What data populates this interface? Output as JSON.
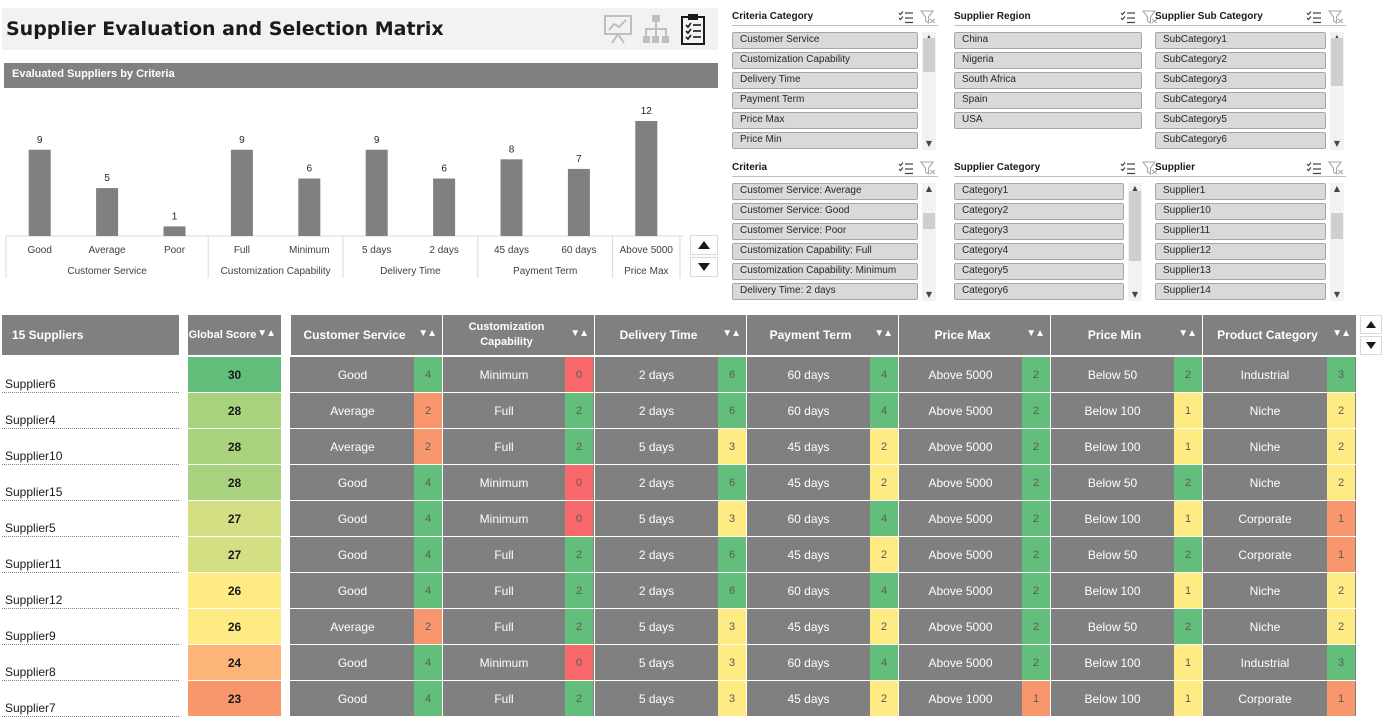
{
  "title": "Supplier Evaluation and Selection Matrix",
  "title_icons": [
    "chart-presentation-icon",
    "org-hierarchy-icon",
    "clipboard-checklist-icon"
  ],
  "chart": {
    "header": "Evaluated Suppliers by Criteria"
  },
  "chart_data": {
    "type": "bar",
    "title": "Evaluated Suppliers by Criteria",
    "groups": [
      {
        "label": "Customer Service",
        "categories": [
          "Good",
          "Average",
          "Poor"
        ],
        "values": [
          9,
          5,
          1
        ]
      },
      {
        "label": "Customization Capability",
        "categories": [
          "Full",
          "Minimum"
        ],
        "values": [
          9,
          6
        ]
      },
      {
        "label": "Delivery Time",
        "categories": [
          "5 days",
          "2 days"
        ],
        "values": [
          9,
          6
        ]
      },
      {
        "label": "Payment Term",
        "categories": [
          "45 days",
          "60 days"
        ],
        "values": [
          8,
          7
        ]
      },
      {
        "label": "Price Max",
        "categories": [
          "Above 5000"
        ],
        "values": [
          12
        ]
      }
    ],
    "categories": [
      "Good",
      "Average",
      "Poor",
      "Full",
      "Minimum",
      "5 days",
      "2 days",
      "45 days",
      "60 days",
      "Above 5000"
    ],
    "values": [
      9,
      5,
      1,
      9,
      6,
      9,
      6,
      8,
      7,
      12
    ],
    "ylim": [
      0,
      12
    ],
    "grid": false,
    "bar_color": "#808080"
  },
  "slicers": [
    {
      "title": "Criteria Category",
      "items": [
        "Customer Service",
        "Customization Capability",
        "Delivery Time",
        "Payment Term",
        "Price Max",
        "Price Min"
      ]
    },
    {
      "title": "Supplier Region",
      "items": [
        "China",
        "Nigeria",
        "South Africa",
        "Spain",
        "USA"
      ]
    },
    {
      "title": "Supplier Sub Category",
      "items": [
        "SubCategory1",
        "SubCategory2",
        "SubCategory3",
        "SubCategory4",
        "SubCategory5",
        "SubCategory6"
      ]
    },
    {
      "title": "Criteria",
      "items": [
        "Customer Service: Average",
        "Customer Service: Good",
        "Customer Service: Poor",
        "Customization Capability: Full",
        "Customization Capability: Minimum",
        "Delivery Time: 2 days"
      ]
    },
    {
      "title": "Supplier Category",
      "items": [
        "Category1",
        "Category2",
        "Category3",
        "Category4",
        "Category5",
        "Category6"
      ]
    },
    {
      "title": "Supplier",
      "items": [
        "Supplier1",
        "Supplier10",
        "Supplier11",
        "Supplier12",
        "Supplier13",
        "Supplier14"
      ]
    }
  ],
  "table": {
    "count_label": "15 Suppliers",
    "score_header": "Global Score",
    "sort_glyph": "▼▲",
    "columns": [
      "Customer Service",
      "Customization Capability",
      "Delivery Time",
      "Payment Term",
      "Price Max",
      "Price Min",
      "Product Category"
    ],
    "rows": [
      {
        "supplier": "Supplier6",
        "score": "30",
        "cells": [
          [
            "Good",
            "4"
          ],
          [
            "Minimum",
            "0"
          ],
          [
            "2 days",
            "6"
          ],
          [
            "60 days",
            "4"
          ],
          [
            "Above 5000",
            "2"
          ],
          [
            "Below 50",
            "2"
          ],
          [
            "Industrial",
            "3"
          ]
        ]
      },
      {
        "supplier": "Supplier4",
        "score": "28",
        "cells": [
          [
            "Average",
            "2"
          ],
          [
            "Full",
            "2"
          ],
          [
            "2 days",
            "6"
          ],
          [
            "60 days",
            "4"
          ],
          [
            "Above 5000",
            "2"
          ],
          [
            "Below 100",
            "1"
          ],
          [
            "Niche",
            "2"
          ]
        ]
      },
      {
        "supplier": "Supplier10",
        "score": "28",
        "cells": [
          [
            "Average",
            "2"
          ],
          [
            "Full",
            "2"
          ],
          [
            "5 days",
            "3"
          ],
          [
            "45 days",
            "2"
          ],
          [
            "Above 5000",
            "2"
          ],
          [
            "Below 100",
            "1"
          ],
          [
            "Niche",
            "2"
          ]
        ]
      },
      {
        "supplier": "Supplier15",
        "score": "28",
        "cells": [
          [
            "Good",
            "4"
          ],
          [
            "Minimum",
            "0"
          ],
          [
            "2 days",
            "6"
          ],
          [
            "45 days",
            "2"
          ],
          [
            "Above 5000",
            "2"
          ],
          [
            "Below 50",
            "2"
          ],
          [
            "Niche",
            "2"
          ]
        ]
      },
      {
        "supplier": "Supplier5",
        "score": "27",
        "cells": [
          [
            "Good",
            "4"
          ],
          [
            "Minimum",
            "0"
          ],
          [
            "5 days",
            "3"
          ],
          [
            "60 days",
            "4"
          ],
          [
            "Above 5000",
            "2"
          ],
          [
            "Below 100",
            "1"
          ],
          [
            "Corporate",
            "1"
          ]
        ]
      },
      {
        "supplier": "Supplier11",
        "score": "27",
        "cells": [
          [
            "Good",
            "4"
          ],
          [
            "Full",
            "2"
          ],
          [
            "2 days",
            "6"
          ],
          [
            "45 days",
            "2"
          ],
          [
            "Above 5000",
            "2"
          ],
          [
            "Below 50",
            "2"
          ],
          [
            "Corporate",
            "1"
          ]
        ]
      },
      {
        "supplier": "Supplier12",
        "score": "26",
        "cells": [
          [
            "Good",
            "4"
          ],
          [
            "Full",
            "2"
          ],
          [
            "2 days",
            "6"
          ],
          [
            "60 days",
            "4"
          ],
          [
            "Above 5000",
            "2"
          ],
          [
            "Below 100",
            "1"
          ],
          [
            "Niche",
            "2"
          ]
        ]
      },
      {
        "supplier": "Supplier9",
        "score": "26",
        "cells": [
          [
            "Average",
            "2"
          ],
          [
            "Full",
            "2"
          ],
          [
            "5 days",
            "3"
          ],
          [
            "45 days",
            "2"
          ],
          [
            "Above 5000",
            "2"
          ],
          [
            "Below 50",
            "2"
          ],
          [
            "Niche",
            "2"
          ]
        ]
      },
      {
        "supplier": "Supplier8",
        "score": "24",
        "cells": [
          [
            "Good",
            "4"
          ],
          [
            "Minimum",
            "0"
          ],
          [
            "5 days",
            "3"
          ],
          [
            "60 days",
            "4"
          ],
          [
            "Above 5000",
            "2"
          ],
          [
            "Below 100",
            "1"
          ],
          [
            "Industrial",
            "3"
          ]
        ]
      },
      {
        "supplier": "Supplier7",
        "score": "23",
        "cells": [
          [
            "Good",
            "4"
          ],
          [
            "Full",
            "2"
          ],
          [
            "5 days",
            "3"
          ],
          [
            "45 days",
            "2"
          ],
          [
            "Above 1000",
            "1"
          ],
          [
            "Below 100",
            "1"
          ],
          [
            "Corporate",
            "1"
          ]
        ]
      }
    ]
  },
  "colors": {
    "score_30": "#63be7b",
    "score_28": "#a9d27f",
    "score_27": "#d3df82",
    "score_26": "#ffeb84",
    "score_24": "#fcb479",
    "score_23": "#f8976d",
    "subscore_green": "#63be7b",
    "subscore_yellow": "#ffeb84",
    "subscore_orange": "#f8976d",
    "subscore_red": "#f8696b",
    "grey": "#808080"
  }
}
